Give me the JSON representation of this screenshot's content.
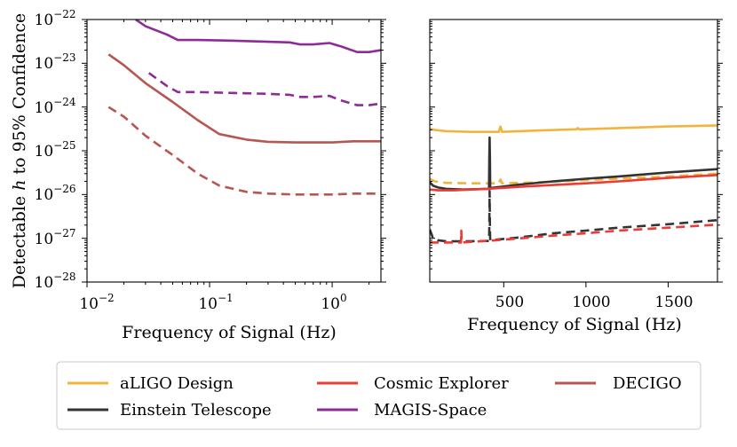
{
  "chart_data": [
    {
      "type": "line",
      "panel": "left",
      "xscale": "log",
      "yscale": "log",
      "xlim": [
        0.01,
        2.5
      ],
      "ylim": [
        1e-28,
        1e-22
      ],
      "xlabel": "Frequency of Signal (Hz)",
      "ylabel": "Detectable h to 95% Confidence",
      "xtick_labels": [
        {
          "base": "10",
          "exp": "−2"
        },
        {
          "base": "10",
          "exp": "−1"
        },
        {
          "base": "10",
          "exp": "0"
        }
      ],
      "ytick_labels": [
        {
          "base": "10",
          "exp": "−28"
        },
        {
          "base": "10",
          "exp": "−27"
        },
        {
          "base": "10",
          "exp": "−26"
        },
        {
          "base": "10",
          "exp": "−25"
        },
        {
          "base": "10",
          "exp": "−24"
        },
        {
          "base": "10",
          "exp": "−23"
        },
        {
          "base": "10",
          "exp": "−22"
        }
      ],
      "series": [
        {
          "name": "MAGIS-Space",
          "style": "solid",
          "color": "#8e2c97",
          "points": [
            [
              0.025,
              1e-22
            ],
            [
              0.03,
              7e-23
            ],
            [
              0.045,
              4.5e-23
            ],
            [
              0.055,
              3.4e-23
            ],
            [
              0.08,
              3.4e-23
            ],
            [
              0.15,
              3.3e-23
            ],
            [
              0.3,
              3.1e-23
            ],
            [
              0.45,
              3e-23
            ],
            [
              0.55,
              2.7e-23
            ],
            [
              0.7,
              2.7e-23
            ],
            [
              0.95,
              2.9e-23
            ],
            [
              1.2,
              2.4e-23
            ],
            [
              1.6,
              1.8e-23
            ],
            [
              2.0,
              1.8e-23
            ],
            [
              2.5,
              2e-23
            ]
          ]
        },
        {
          "name": "MAGIS-Space (dashed)",
          "style": "dashed",
          "color": "#8e2c97",
          "points": [
            [
              0.032,
              6e-24
            ],
            [
              0.045,
              3e-24
            ],
            [
              0.055,
              2.2e-24
            ],
            [
              0.08,
              2.2e-24
            ],
            [
              0.15,
              2.1e-24
            ],
            [
              0.3,
              2e-24
            ],
            [
              0.45,
              1.9e-24
            ],
            [
              0.55,
              1.7e-24
            ],
            [
              0.7,
              1.7e-24
            ],
            [
              0.95,
              1.8e-24
            ],
            [
              1.2,
              1.4e-24
            ],
            [
              1.6,
              1.1e-24
            ],
            [
              2.0,
              1.1e-24
            ],
            [
              2.5,
              1.2e-24
            ]
          ]
        },
        {
          "name": "DECIGO",
          "style": "solid",
          "color": "#b65751",
          "points": [
            [
              0.015,
              1.6e-23
            ],
            [
              0.02,
              9e-24
            ],
            [
              0.03,
              3.5e-24
            ],
            [
              0.05,
              1.3e-24
            ],
            [
              0.08,
              5e-25
            ],
            [
              0.12,
              2.4e-25
            ],
            [
              0.2,
              1.8e-25
            ],
            [
              0.3,
              1.6e-25
            ],
            [
              0.5,
              1.55e-25
            ],
            [
              1.0,
              1.55e-25
            ],
            [
              1.5,
              1.65e-25
            ],
            [
              2.5,
              1.65e-25
            ]
          ]
        },
        {
          "name": "DECIGO (dashed)",
          "style": "dashed",
          "color": "#b65751",
          "points": [
            [
              0.015,
              1e-24
            ],
            [
              0.02,
              6e-25
            ],
            [
              0.03,
              2.2e-25
            ],
            [
              0.05,
              8e-26
            ],
            [
              0.08,
              3e-26
            ],
            [
              0.12,
              1.6e-26
            ],
            [
              0.2,
              1.15e-26
            ],
            [
              0.3,
              1.05e-26
            ],
            [
              0.5,
              1e-26
            ],
            [
              1.0,
              1e-26
            ],
            [
              1.5,
              1.05e-26
            ],
            [
              2.5,
              1.05e-26
            ]
          ]
        }
      ]
    },
    {
      "type": "line",
      "panel": "right",
      "xscale": "linear",
      "yscale": "log",
      "xlim": [
        50,
        1800
      ],
      "ylim": [
        1e-28,
        1e-22
      ],
      "xlabel": "Frequency of Signal (Hz)",
      "xticks": [
        500,
        1000,
        1500
      ],
      "xtick_labels": [
        "500",
        "1000",
        "1500"
      ],
      "series": [
        {
          "name": "aLIGO Design",
          "style": "solid",
          "color": "#f5b33d",
          "points": [
            [
              50,
              3.2e-25
            ],
            [
              80,
              3e-25
            ],
            [
              150,
              2.8e-25
            ],
            [
              300,
              2.7e-25
            ],
            [
              470,
              2.7e-25
            ],
            [
              480,
              3.6e-25
            ],
            [
              490,
              2.7e-25
            ],
            [
              700,
              2.9e-25
            ],
            [
              940,
              3.1e-25
            ],
            [
              950,
              3.3e-25
            ],
            [
              960,
              3.1e-25
            ],
            [
              1200,
              3.3e-25
            ],
            [
              1500,
              3.6e-25
            ],
            [
              1800,
              3.8e-25
            ]
          ]
        },
        {
          "name": "aLIGO Design (dashed)",
          "style": "dashed",
          "color": "#f5b33d",
          "points": [
            [
              50,
              2.3e-26
            ],
            [
              80,
              2e-26
            ],
            [
              150,
              1.85e-26
            ],
            [
              300,
              1.8e-26
            ],
            [
              470,
              1.8e-26
            ],
            [
              480,
              2.2e-26
            ],
            [
              490,
              1.8e-26
            ],
            [
              700,
              1.9e-26
            ],
            [
              950,
              2.1e-26
            ],
            [
              1200,
              2.3e-26
            ],
            [
              1500,
              2.6e-26
            ],
            [
              1800,
              3e-26
            ]
          ]
        },
        {
          "name": "Einstein Telescope",
          "style": "solid",
          "color": "#333333",
          "points": [
            [
              50,
              1.9e-26
            ],
            [
              70,
              1.6e-26
            ],
            [
              100,
              1.45e-26
            ],
            [
              150,
              1.35e-26
            ],
            [
              250,
              1.3e-26
            ],
            [
              410,
              1.35e-26
            ],
            [
              412,
              6e-26
            ],
            [
              414,
              2e-25
            ],
            [
              416,
              6e-26
            ],
            [
              418,
              1.4e-26
            ],
            [
              600,
              1.7e-26
            ],
            [
              800,
              2e-26
            ],
            [
              1000,
              2.3e-26
            ],
            [
              1200,
              2.6e-26
            ],
            [
              1500,
              3.2e-26
            ],
            [
              1800,
              3.8e-26
            ]
          ]
        },
        {
          "name": "Einstein Telescope (dashed)",
          "style": "dashed",
          "color": "#333333",
          "points": [
            [
              50,
              1.6e-27
            ],
            [
              70,
              1e-27
            ],
            [
              100,
              9e-28
            ],
            [
              150,
              8.5e-28
            ],
            [
              250,
              8.5e-28
            ],
            [
              410,
              8.7e-28
            ],
            [
              412,
              1.5e-27
            ],
            [
              414,
              1.2e-26
            ],
            [
              416,
              1.5e-27
            ],
            [
              418,
              9e-28
            ],
            [
              600,
              1.05e-27
            ],
            [
              800,
              1.3e-27
            ],
            [
              1000,
              1.5e-27
            ],
            [
              1200,
              1.75e-27
            ],
            [
              1500,
              2.1e-27
            ],
            [
              1800,
              2.6e-27
            ]
          ]
        },
        {
          "name": "Cosmic Explorer",
          "style": "solid",
          "color": "#ea3b35",
          "points": [
            [
              50,
              1.3e-26
            ],
            [
              100,
              1.25e-26
            ],
            [
              200,
              1.25e-26
            ],
            [
              300,
              1.3e-26
            ],
            [
              400,
              1.35e-26
            ],
            [
              600,
              1.5e-26
            ],
            [
              800,
              1.65e-26
            ],
            [
              1000,
              1.8e-26
            ],
            [
              1200,
              2e-26
            ],
            [
              1500,
              2.4e-26
            ],
            [
              1800,
              2.8e-26
            ]
          ]
        },
        {
          "name": "Cosmic Explorer (dashed)",
          "style": "dashed",
          "color": "#ea3b35",
          "points": [
            [
              50,
              8e-28
            ],
            [
              100,
              8e-28
            ],
            [
              150,
              8e-28
            ],
            [
              240,
              8e-28
            ],
            [
              242,
              1.5e-27
            ],
            [
              244,
              8e-28
            ],
            [
              300,
              8.3e-28
            ],
            [
              450,
              9e-28
            ],
            [
              600,
              1e-27
            ],
            [
              800,
              1.15e-27
            ],
            [
              1000,
              1.3e-27
            ],
            [
              1200,
              1.5e-27
            ],
            [
              1500,
              1.75e-27
            ],
            [
              1800,
              2.05e-27
            ]
          ]
        }
      ]
    }
  ],
  "legend": {
    "placement": "bottom-center",
    "items": [
      {
        "label": "aLIGO Design",
        "color": "#f5b33d"
      },
      {
        "label": "Cosmic Explorer",
        "color": "#ea3b35"
      },
      {
        "label": "DECIGO",
        "color": "#b65751"
      },
      {
        "label": "Einstein Telescope",
        "color": "#333333"
      },
      {
        "label": "MAGIS-Space",
        "color": "#8e2c97"
      }
    ]
  }
}
